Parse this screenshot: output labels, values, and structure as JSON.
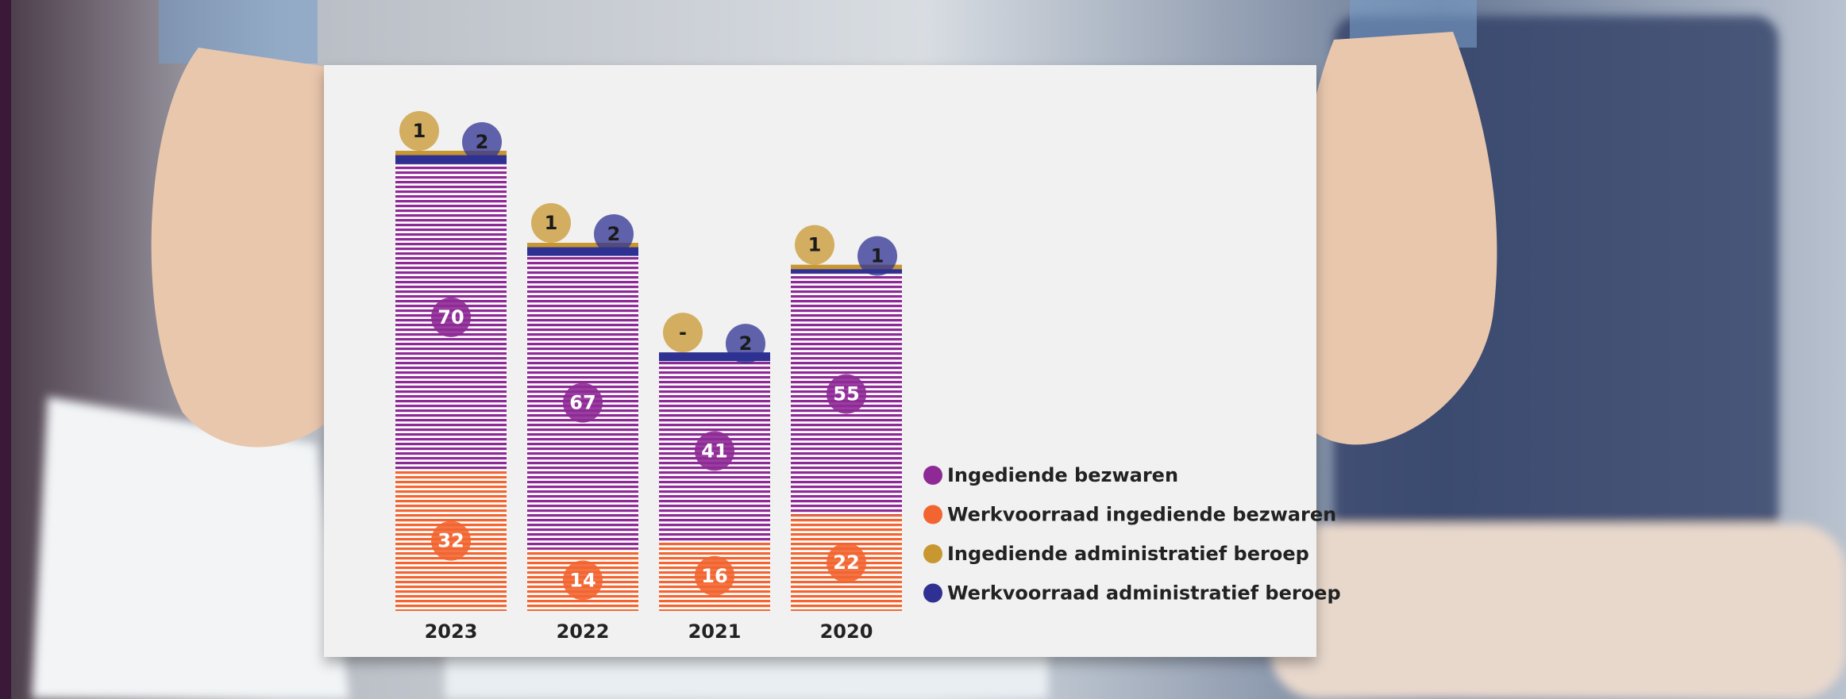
{
  "chart_data": {
    "type": "stacked-bar",
    "categories": [
      "2023",
      "2022",
      "2021",
      "2020"
    ],
    "series": [
      {
        "name": "Ingediende bezwaren",
        "color": "#8e2a96",
        "values": [
          70,
          67,
          41,
          55
        ]
      },
      {
        "name": "Werkvoorraad ingediende bezwaren",
        "color": "#f26531",
        "values": [
          32,
          14,
          16,
          22
        ]
      },
      {
        "name": "Ingediende administratief beroep",
        "color": "#c8972f",
        "values": [
          1,
          1,
          0,
          1
        ],
        "value_labels": [
          "1",
          "1",
          "-",
          "1"
        ]
      },
      {
        "name": "Werkvoorraad administratief beroep",
        "color": "#2e3192",
        "values": [
          2,
          2,
          2,
          1
        ]
      }
    ]
  }
}
